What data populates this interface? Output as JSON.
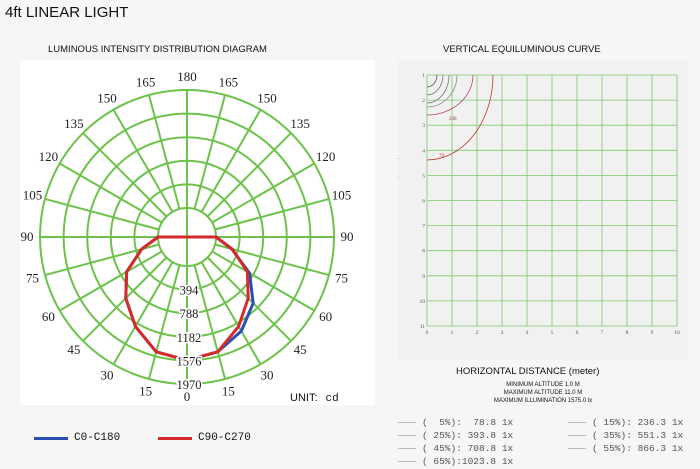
{
  "title": "4ft  LINEAR LIGHT",
  "polar": {
    "heading": "LUMINOUS INTENSITY DISTRIBUTION DIAGRAM",
    "angle_labels": [
      {
        "text": "180",
        "deg": 180
      },
      {
        "text": "165",
        "deg": 165
      },
      {
        "text": "165",
        "deg": -165
      },
      {
        "text": "150",
        "deg": 150
      },
      {
        "text": "150",
        "deg": -150
      },
      {
        "text": "135",
        "deg": 135
      },
      {
        "text": "135",
        "deg": -135
      },
      {
        "text": "120",
        "deg": 120
      },
      {
        "text": "120",
        "deg": -120
      },
      {
        "text": "105",
        "deg": 105
      },
      {
        "text": "105",
        "deg": -105
      },
      {
        "text": "90",
        "deg": 90
      },
      {
        "text": "90",
        "deg": -90
      },
      {
        "text": "75",
        "deg": 75
      },
      {
        "text": "75",
        "deg": -75
      },
      {
        "text": "60",
        "deg": 60
      },
      {
        "text": "60",
        "deg": -60
      },
      {
        "text": "45",
        "deg": 45
      },
      {
        "text": "45",
        "deg": -45
      },
      {
        "text": "30",
        "deg": 30
      },
      {
        "text": "30",
        "deg": -30
      },
      {
        "text": "15",
        "deg": 15
      },
      {
        "text": "15",
        "deg": -15
      },
      {
        "text": "0",
        "deg": 0
      }
    ],
    "ring_labels": [
      "394",
      "788",
      "1182",
      "1576",
      "1970"
    ],
    "unit_label": "UNIT:",
    "unit": "cd",
    "legend": [
      {
        "label": "C0-C180",
        "color": "#2a4fb3"
      },
      {
        "label": "C90-C270",
        "color": "#d62a2a"
      }
    ]
  },
  "chart_data": {
    "type": "polar",
    "r_max": 1970,
    "rings": [
      394,
      788,
      1182,
      1576,
      1970
    ],
    "series": [
      {
        "name": "C0-C180",
        "color": "#2a4fb3",
        "angles": [
          0,
          15,
          30,
          45,
          60,
          75,
          90,
          -15,
          -30,
          -45,
          -60,
          -75,
          -90
        ],
        "values": [
          1575,
          1500,
          1330,
          1080,
          720,
          290,
          0,
          1500,
          1240,
          960,
          680,
          300,
          0
        ]
      },
      {
        "name": "C90-C270",
        "color": "#d62a2a",
        "angles": [
          0,
          15,
          30,
          45,
          60,
          75,
          90,
          -15,
          -30,
          -45,
          -60,
          -75,
          -90
        ],
        "values": [
          1575,
          1500,
          1240,
          960,
          680,
          300,
          0,
          1500,
          1240,
          960,
          680,
          300,
          0
        ]
      }
    ]
  },
  "iso": {
    "heading": "VERTICAL  EQUILUMINOUS  CURVE",
    "y_title": "VERTICAL HEIGHT (meter)",
    "x_title": "HORIZONTAL DISTANCE (meter)",
    "y_ticks": [
      "1",
      "2",
      "3",
      "4",
      "5",
      "6",
      "7",
      "8",
      "9",
      "10",
      "11"
    ],
    "x_ticks": [
      "0",
      "1",
      "2",
      "3",
      "4",
      "5",
      "6",
      "7",
      "8",
      "9",
      "10"
    ],
    "contour_labels": [
      "236",
      "79"
    ],
    "info": [
      "MINIMUM  ALTITUDE  1.0 M",
      "MAXIMUM  ALTITUDE  11.0 M",
      "MAXIMUM  ILLUMINATION 1575.0 lx"
    ],
    "legend_left": [
      "(  5%):  78.8 1x",
      "( 25%): 393.8 1x",
      "( 45%): 708.8 1x",
      "( 65%):1023.8 1x"
    ],
    "legend_right": [
      "( 15%): 236.3 1x",
      "( 35%): 551.3 1x",
      "( 55%): 866.3 1x"
    ]
  }
}
